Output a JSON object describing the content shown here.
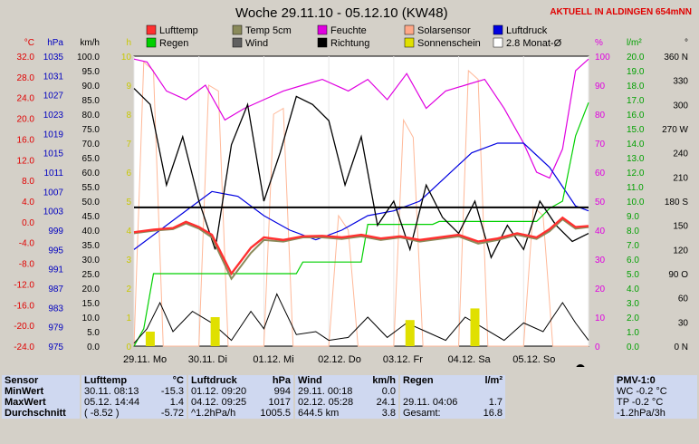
{
  "header": {
    "title": "Woche 29.11.10 - 05.12.10 (KW48)",
    "aktuell": "AKTUELL IN ALDINGEN 654mNN"
  },
  "chart_data": {
    "type": "line",
    "x_ticks": [
      "29.11. Mo",
      "30.11. Di",
      "01.12. Mi",
      "02.12. Do",
      "03.12. Fr",
      "04.12. Sa",
      "05.12. So"
    ],
    "x_range_days": [
      0,
      7
    ],
    "axes": [
      {
        "id": "temp",
        "unit": "°C",
        "color": "#e00000",
        "ticks": [
          "32.0",
          "28.0",
          "24.0",
          "20.0",
          "16.0",
          "12.0",
          "8.0",
          "4.0",
          "0.0",
          "-4.0",
          "-8.0",
          "-12.0",
          "-16.0",
          "-20.0",
          "-24.0"
        ],
        "range": [
          -24,
          32
        ]
      },
      {
        "id": "hpa",
        "unit": "hPa",
        "color": "#0000c0",
        "ticks": [
          "1035",
          "1031",
          "1027",
          "1023",
          "1019",
          "1015",
          "1011",
          "1007",
          "1003",
          "999",
          "995",
          "991",
          "987",
          "983",
          "979",
          "975"
        ],
        "range": [
          975,
          1035
        ]
      },
      {
        "id": "kmh",
        "unit": "km/h",
        "color": "#000000",
        "ticks": [
          "100.0",
          "95.0",
          "90.0",
          "85.0",
          "80.0",
          "75.0",
          "70.0",
          "65.0",
          "60.0",
          "55.0",
          "50.0",
          "45.0",
          "40.0",
          "35.0",
          "30.0",
          "25.0",
          "20.0",
          "15.0",
          "10.0",
          "5.0",
          "0.0"
        ],
        "range": [
          0,
          100
        ]
      },
      {
        "id": "h",
        "unit": "h",
        "color": "#c8c800",
        "ticks": [
          "10",
          "9",
          "8",
          "7",
          "6",
          "5",
          "4",
          "3",
          "2",
          "1",
          "0"
        ],
        "range": [
          0,
          10
        ]
      },
      {
        "id": "pct",
        "unit": "%",
        "color": "#e000e0",
        "ticks": [
          "100",
          "90",
          "80",
          "70",
          "60",
          "50",
          "40",
          "30",
          "20",
          "10",
          "0"
        ],
        "range": [
          0,
          100
        ]
      },
      {
        "id": "lm2",
        "unit": "l/m²",
        "color": "#00a000",
        "ticks": [
          "20.0",
          "19.0",
          "18.0",
          "17.0",
          "16.0",
          "15.0",
          "14.0",
          "13.0",
          "12.0",
          "11.0",
          "10.0",
          "9.0",
          "8.0",
          "7.0",
          "6.0",
          "5.0",
          "4.0",
          "3.0",
          "2.0",
          "1.0",
          "0.0"
        ],
        "range": [
          0,
          20
        ]
      },
      {
        "id": "deg",
        "unit": "°",
        "color": "#000000",
        "ticks": [
          "360 N",
          "330",
          "300",
          "270 W",
          "240",
          "210",
          "180 S",
          "150",
          "120",
          "90 O",
          "60",
          "30",
          "0 N"
        ],
        "range": [
          0,
          360
        ]
      }
    ],
    "legend": [
      {
        "label": "Lufttemp",
        "color": "#ff3030"
      },
      {
        "label": "Temp 5cm",
        "color": "#8a8a5a"
      },
      {
        "label": "Feuchte",
        "color": "#e000e0"
      },
      {
        "label": "Solarsensor",
        "color": "#ffa888"
      },
      {
        "label": "Luftdruck",
        "color": "#0000e0"
      },
      {
        "label": "Regen",
        "color": "#00d000"
      },
      {
        "label": "Wind",
        "color": "#606060"
      },
      {
        "label": "Richtung",
        "color": "#000000"
      },
      {
        "label": "Sonnenschein",
        "color": "#e0e000"
      },
      {
        "label": "2.8 Monat-Ø",
        "color": "#ffffff"
      }
    ],
    "monthly_avg_temp": 2.8,
    "series": {
      "lufttemp": {
        "axis": "temp",
        "x": [
          0,
          0.3,
          0.6,
          0.8,
          1.0,
          1.2,
          1.5,
          1.8,
          2.0,
          2.3,
          2.6,
          2.9,
          3.2,
          3.5,
          3.8,
          4.1,
          4.4,
          4.7,
          5.0,
          5.3,
          5.6,
          5.9,
          6.2,
          6.4,
          6.6,
          6.8,
          7.0
        ],
        "y": [
          -2,
          -1.5,
          -1.2,
          0,
          -1,
          -2.5,
          -10,
          -5,
          -3,
          -3.5,
          -2.8,
          -2.7,
          -3.0,
          -2.5,
          -3.2,
          -2.8,
          -3.5,
          -3,
          -2.5,
          -3.8,
          -3.2,
          -2.2,
          -3,
          -1.4,
          0.8,
          -1,
          -0.8
        ]
      },
      "temp5cm": {
        "axis": "temp",
        "x": [
          0,
          0.3,
          0.6,
          0.8,
          1.0,
          1.2,
          1.5,
          1.8,
          2.0,
          2.3,
          2.6,
          2.9,
          3.2,
          3.5,
          3.8,
          4.1,
          4.4,
          4.7,
          5.0,
          5.3,
          5.6,
          5.9,
          6.2,
          6.4,
          6.6,
          6.8,
          7.0
        ],
        "y": [
          -2.2,
          -1.7,
          -1.4,
          -0.3,
          -1.3,
          -3,
          -11,
          -6,
          -3.5,
          -3.8,
          -3,
          -3,
          -3.3,
          -2.8,
          -3.5,
          -3,
          -3.8,
          -3.3,
          -2.8,
          -4.2,
          -3.5,
          -2.5,
          -3.3,
          -1.8,
          0.5,
          -1.3,
          -1
        ]
      },
      "feuchte": {
        "axis": "pct",
        "x": [
          0,
          0.2,
          0.5,
          0.8,
          1.1,
          1.4,
          1.7,
          2.0,
          2.3,
          2.6,
          2.9,
          3.3,
          3.6,
          3.9,
          4.2,
          4.5,
          4.8,
          5.1,
          5.4,
          5.7,
          6.0,
          6.2,
          6.4,
          6.6,
          6.8,
          7.0
        ],
        "y": [
          99,
          98,
          88,
          85,
          90,
          78,
          82,
          85,
          88,
          90,
          92,
          88,
          92,
          85,
          94,
          82,
          88,
          90,
          92,
          82,
          70,
          60,
          58,
          68,
          95,
          99
        ]
      },
      "luftdruck": {
        "axis": "hpa",
        "x": [
          0,
          0.4,
          0.8,
          1.2,
          1.6,
          2.0,
          2.4,
          2.8,
          3.2,
          3.6,
          4.0,
          4.4,
          4.8,
          5.2,
          5.6,
          6.0,
          6.4,
          6.8,
          7.0
        ],
        "y": [
          995,
          999,
          1003,
          1007,
          1006,
          1002,
          999,
          997,
          999,
          1002,
          1003,
          1005,
          1010,
          1015,
          1017,
          1017,
          1012,
          1004,
          1003
        ]
      },
      "regen": {
        "axis": "lm2",
        "x": [
          0,
          0.15,
          0.3,
          1.0,
          2.5,
          2.6,
          3.5,
          3.6,
          4.6,
          4.7,
          6.0,
          6.2,
          6.4,
          6.6,
          6.8,
          7.0
        ],
        "y": [
          0,
          1.2,
          5.0,
          5.0,
          5.0,
          5.8,
          5.8,
          8.4,
          8.4,
          8.6,
          8.6,
          8.6,
          9.5,
          10.0,
          14.5,
          16.8
        ]
      },
      "wind": {
        "axis": "kmh",
        "x": [
          0,
          0.2,
          0.4,
          0.6,
          0.9,
          1.2,
          1.5,
          1.8,
          2.0,
          2.2,
          2.5,
          2.8,
          3.0,
          3.3,
          3.6,
          3.9,
          4.2,
          4.5,
          4.8,
          5.1,
          5.4,
          5.7,
          6.0,
          6.3,
          6.6,
          6.8,
          7.0
        ],
        "y": [
          1,
          6,
          15,
          5,
          12,
          8,
          2,
          12,
          6,
          18,
          4,
          5,
          2,
          3,
          10,
          3,
          8,
          5,
          2,
          10,
          6,
          2,
          8,
          5,
          15,
          8,
          2
        ]
      },
      "richtung": {
        "axis": "deg",
        "x": [
          0,
          0.25,
          0.5,
          0.75,
          1.0,
          1.25,
          1.5,
          1.75,
          2.0,
          2.25,
          2.5,
          2.75,
          3.0,
          3.25,
          3.5,
          3.75,
          4.0,
          4.25,
          4.5,
          4.75,
          5.0,
          5.25,
          5.5,
          5.75,
          6.0,
          6.25,
          6.5,
          6.75,
          7.0
        ],
        "y": [
          320,
          300,
          200,
          260,
          180,
          120,
          250,
          300,
          180,
          240,
          310,
          300,
          280,
          200,
          260,
          150,
          180,
          120,
          200,
          160,
          140,
          180,
          110,
          150,
          120,
          180,
          150,
          130,
          140
        ]
      },
      "solar": {
        "axis": "pct",
        "x": [
          0,
          0.15,
          0.3,
          0.45,
          1.0,
          1.15,
          1.3,
          1.45,
          2.0,
          2.15,
          2.3,
          2.45,
          3.0,
          3.15,
          3.3,
          3.45,
          4.0,
          4.15,
          4.3,
          4.45,
          5.0,
          5.15,
          5.3,
          5.45,
          6.0,
          6.15,
          6.3,
          6.45,
          7.0
        ],
        "y": [
          0,
          98,
          95,
          0,
          0,
          90,
          88,
          0,
          0,
          80,
          82,
          0,
          0,
          45,
          40,
          0,
          0,
          78,
          72,
          0,
          0,
          95,
          92,
          0,
          0,
          48,
          45,
          0,
          0
        ]
      },
      "sonnenschein": {
        "axis": "h",
        "days": [
          0.25,
          1.25,
          4.25,
          5.25
        ],
        "values": [
          0.5,
          1.0,
          0.9,
          1.3
        ]
      }
    }
  },
  "stats": {
    "sensor": {
      "head": "Sensor",
      "rows": [
        "MinWert",
        "MaxWert",
        "Durchschnitt"
      ]
    },
    "lufttemp": {
      "head": "Lufttemp",
      "unit": "°C",
      "rows": [
        [
          "30.11.  08:13",
          "-15.3"
        ],
        [
          "05.12.  14:44",
          "1.4"
        ],
        [
          "( -8.52 )",
          "-5.72"
        ]
      ]
    },
    "luftdruck": {
      "head": "Luftdruck",
      "unit": "hPa",
      "rows": [
        [
          "01.12.  09:20",
          "994"
        ],
        [
          "04.12.  09:25",
          "1017"
        ],
        [
          "^1.2hPa/h",
          "1005.5"
        ]
      ]
    },
    "wind": {
      "head": "Wind",
      "unit": "km/h",
      "rows": [
        [
          "29.11.  00:18",
          "0.0"
        ],
        [
          "02.12.  05:28",
          "24.1"
        ],
        [
          "644.5 km",
          "3.8"
        ]
      ]
    },
    "regen": {
      "head": "Regen",
      "unit": "l/m²",
      "rows": [
        [
          "29.11.  04:06",
          "1.7"
        ],
        [
          "Gesamt:",
          "16.8"
        ]
      ]
    },
    "pmv": {
      "head": "PMV-1:0",
      "rows": [
        "WC -0.2 °C",
        "TP -0.2 °C",
        "-1.2hPa/3h"
      ]
    }
  }
}
